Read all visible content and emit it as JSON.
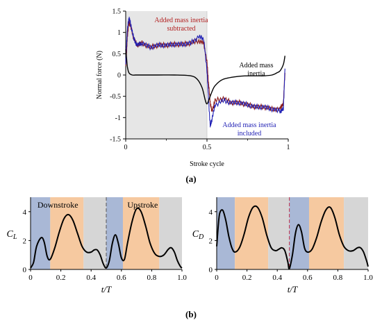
{
  "panel_labels": {
    "a": "(a)",
    "b": "(b)"
  },
  "chart_data": [
    {
      "panel": "a",
      "type": "line",
      "title": "",
      "xlabel": "Stroke cycle",
      "ylabel": "Normal force (N)",
      "xlim": [
        0,
        1
      ],
      "ylim": [
        -1.5,
        1.5
      ],
      "xticks": [
        "0",
        "0.5",
        "1"
      ],
      "yticks": [
        "1.5",
        "1",
        "0.5",
        "0",
        "-0.5",
        "-1",
        "-1.5"
      ],
      "shaded_interval": [
        0,
        0.5
      ],
      "annotations": [
        "Added mass inertia subtracted",
        "Added mass inertia",
        "Added mass inertia included"
      ],
      "series": [
        {
          "name": "Added mass inertia subtracted",
          "color": "#8b1a1a",
          "x": [
            0,
            0.005,
            0.01,
            0.02,
            0.03,
            0.05,
            0.07,
            0.1,
            0.15,
            0.2,
            0.25,
            0.3,
            0.35,
            0.4,
            0.45,
            0.48,
            0.5,
            0.51,
            0.52,
            0.53,
            0.55,
            0.6,
            0.65,
            0.7,
            0.75,
            0.8,
            0.85,
            0.9,
            0.95,
            0.97,
            0.98
          ],
          "y": [
            0.2,
            0.5,
            0.9,
            1.25,
            1.15,
            0.85,
            0.7,
            0.75,
            0.65,
            0.7,
            0.7,
            0.72,
            0.72,
            0.75,
            0.8,
            0.75,
            0.3,
            -0.2,
            -0.65,
            -0.85,
            -0.6,
            -0.55,
            -0.65,
            -0.65,
            -0.7,
            -0.75,
            -0.75,
            -0.8,
            -0.8,
            -0.65,
            0.05
          ]
        },
        {
          "name": "Added mass inertia included",
          "color": "#1f1fb4",
          "x": [
            0,
            0.005,
            0.01,
            0.02,
            0.03,
            0.05,
            0.07,
            0.1,
            0.15,
            0.2,
            0.25,
            0.3,
            0.35,
            0.4,
            0.45,
            0.48,
            0.5,
            0.51,
            0.52,
            0.53,
            0.55,
            0.6,
            0.65,
            0.7,
            0.75,
            0.8,
            0.85,
            0.9,
            0.95,
            0.97,
            0.98
          ],
          "y": [
            0.3,
            0.7,
            1.05,
            1.35,
            1.2,
            0.85,
            0.7,
            0.75,
            0.65,
            0.7,
            0.7,
            0.72,
            0.72,
            0.75,
            0.9,
            0.85,
            0.1,
            -0.6,
            -1.2,
            -1.05,
            -0.7,
            -0.6,
            -0.65,
            -0.65,
            -0.7,
            -0.75,
            -0.75,
            -0.8,
            -0.85,
            -0.8,
            0.15
          ]
        },
        {
          "name": "Added mass inertia",
          "color": "#000000",
          "x": [
            0,
            0.005,
            0.01,
            0.02,
            0.04,
            0.06,
            0.1,
            0.2,
            0.3,
            0.4,
            0.44,
            0.47,
            0.49,
            0.5,
            0.51,
            0.53,
            0.55,
            0.6,
            0.7,
            0.8,
            0.85,
            0.9,
            0.93,
            0.95,
            0.97,
            0.98
          ],
          "y": [
            0.6,
            0.4,
            0.2,
            0.05,
            0.0,
            0.0,
            0.0,
            0.0,
            0.0,
            -0.02,
            -0.1,
            -0.3,
            -0.6,
            -0.68,
            -0.6,
            -0.4,
            -0.25,
            -0.1,
            -0.03,
            -0.02,
            -0.02,
            0.0,
            0.05,
            0.1,
            0.25,
            0.45
          ]
        }
      ]
    },
    {
      "panel": "b-left",
      "type": "line",
      "title": "",
      "xlabel": "t/T",
      "ylabel": "C_L",
      "xlim": [
        0,
        1
      ],
      "ylim": [
        0,
        5
      ],
      "xticks": [
        "0",
        "0.2",
        "0.4",
        "0.6",
        "0.8",
        "1.0"
      ],
      "yticks": [
        "0",
        "2",
        "4"
      ],
      "phase_labels": [
        "Downstroke",
        "Upstroke"
      ],
      "divider_x": 0.5,
      "bands": [
        {
          "from": 0.0,
          "to": 0.13,
          "color": "#a9b8d6"
        },
        {
          "from": 0.13,
          "to": 0.35,
          "color": "#f6c9a0"
        },
        {
          "from": 0.35,
          "to": 0.5,
          "color": "#d6d6d6"
        },
        {
          "from": 0.5,
          "to": 0.61,
          "color": "#a9b8d6"
        },
        {
          "from": 0.61,
          "to": 0.85,
          "color": "#f6c9a0"
        },
        {
          "from": 0.85,
          "to": 1.0,
          "color": "#d6d6d6"
        }
      ],
      "series": [
        {
          "color": "#000000",
          "x": [
            0.0,
            0.02,
            0.04,
            0.07,
            0.09,
            0.11,
            0.13,
            0.16,
            0.19,
            0.22,
            0.25,
            0.28,
            0.31,
            0.34,
            0.37,
            0.4,
            0.42,
            0.44,
            0.46,
            0.48,
            0.5,
            0.52,
            0.54,
            0.56,
            0.58,
            0.6,
            0.62,
            0.64,
            0.67,
            0.7,
            0.73,
            0.76,
            0.79,
            0.82,
            0.85,
            0.88,
            0.91,
            0.93,
            0.95,
            0.97,
            0.99,
            1.0
          ],
          "y": [
            0.1,
            0.5,
            1.6,
            2.2,
            1.9,
            0.9,
            0.7,
            1.5,
            2.6,
            3.5,
            3.8,
            3.4,
            2.5,
            1.6,
            1.2,
            1.2,
            1.35,
            1.35,
            1.0,
            0.4,
            0.1,
            0.6,
            1.8,
            2.4,
            1.8,
            0.8,
            0.7,
            1.8,
            3.3,
            4.2,
            4.0,
            3.0,
            1.8,
            1.1,
            0.9,
            1.0,
            1.4,
            1.5,
            1.2,
            0.6,
            0.2,
            0.1
          ]
        }
      ]
    },
    {
      "panel": "b-right",
      "type": "line",
      "title": "",
      "xlabel": "t/T",
      "ylabel": "C_D",
      "xlim": [
        0,
        1
      ],
      "ylim": [
        0,
        5
      ],
      "xticks": [
        "0",
        "0.2",
        "0.4",
        "0.6",
        "0.8",
        "1.0"
      ],
      "yticks": [
        "0",
        "2",
        "4"
      ],
      "divider_x": 0.48,
      "bands": [
        {
          "from": 0.0,
          "to": 0.12,
          "color": "#a9b8d6"
        },
        {
          "from": 0.12,
          "to": 0.34,
          "color": "#f6c9a0"
        },
        {
          "from": 0.34,
          "to": 0.48,
          "color": "#d6d6d6"
        },
        {
          "from": 0.48,
          "to": 0.61,
          "color": "#a9b8d6"
        },
        {
          "from": 0.61,
          "to": 0.84,
          "color": "#f6c9a0"
        },
        {
          "from": 0.84,
          "to": 1.0,
          "color": "#d6d6d6"
        }
      ],
      "series": [
        {
          "color": "#000000",
          "x": [
            0.0,
            0.01,
            0.02,
            0.04,
            0.06,
            0.08,
            0.1,
            0.12,
            0.15,
            0.18,
            0.21,
            0.24,
            0.27,
            0.3,
            0.33,
            0.36,
            0.39,
            0.41,
            0.43,
            0.45,
            0.47,
            0.48,
            0.5,
            0.52,
            0.54,
            0.56,
            0.58,
            0.6,
            0.63,
            0.66,
            0.69,
            0.72,
            0.75,
            0.78,
            0.81,
            0.84,
            0.87,
            0.9,
            0.93,
            0.95,
            0.97,
            0.99,
            1.0
          ],
          "y": [
            1.6,
            3.0,
            3.9,
            4.1,
            3.4,
            2.3,
            1.5,
            1.2,
            1.5,
            2.4,
            3.6,
            4.3,
            4.3,
            3.6,
            2.4,
            1.5,
            1.3,
            1.4,
            1.5,
            1.3,
            0.5,
            0.05,
            1.0,
            2.5,
            3.1,
            2.6,
            1.5,
            1.2,
            1.4,
            2.2,
            3.3,
            4.1,
            4.3,
            3.6,
            2.4,
            1.6,
            1.3,
            1.3,
            1.5,
            1.5,
            1.2,
            0.6,
            0.2
          ]
        }
      ]
    }
  ]
}
